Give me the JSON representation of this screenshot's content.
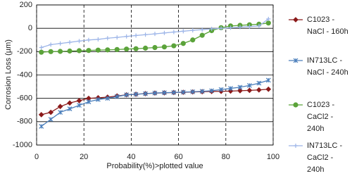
{
  "chart_data": {
    "type": "line",
    "x_label": "Probability(%)>plotted value",
    "y_label": "Corrosion Loss (µm)",
    "x": [
      2,
      6,
      10,
      14,
      18,
      22,
      26,
      30,
      34,
      38,
      42,
      46,
      50,
      54,
      58,
      62,
      66,
      70,
      74,
      78,
      82,
      86,
      90,
      94,
      98
    ],
    "series": [
      {
        "name": "C1023 - NaCl - 160h",
        "color": "#8b1a1a",
        "marker": "diamond",
        "values": [
          -740,
          -720,
          -670,
          -640,
          -620,
          -600,
          -595,
          -590,
          -580,
          -570,
          -565,
          -560,
          -555,
          -553,
          -550,
          -548,
          -545,
          -543,
          -541,
          -540,
          -538,
          -535,
          -532,
          -528,
          -522
        ]
      },
      {
        "name": "IN713LC - NaCl - 240h",
        "color": "#4a7ebb",
        "marker": "star",
        "values": [
          -840,
          -780,
          -720,
          -690,
          -660,
          -630,
          -610,
          -600,
          -585,
          -570,
          -565,
          -560,
          -555,
          -552,
          -550,
          -547,
          -544,
          -540,
          -535,
          -525,
          -515,
          -505,
          -490,
          -470,
          -445
        ]
      },
      {
        "name": "C1023 - CaCl2 - 240h",
        "color": "#5ba33a",
        "marker": "circle",
        "values": [
          -205,
          -200,
          -198,
          -195,
          -192,
          -190,
          -187,
          -185,
          -182,
          -178,
          -175,
          -170,
          -165,
          -160,
          -150,
          -130,
          -100,
          -60,
          -20,
          5,
          20,
          25,
          30,
          35,
          45
        ]
      },
      {
        "name": "IN713LC - CaCl2 - 240h",
        "color": "#9db5e8",
        "marker": "plus",
        "values": [
          -165,
          -140,
          -130,
          -120,
          -110,
          -100,
          -95,
          -85,
          -78,
          -70,
          -62,
          -55,
          -48,
          -40,
          -32,
          -25,
          -18,
          -12,
          -5,
          0,
          5,
          10,
          15,
          20,
          80
        ]
      }
    ],
    "xlim": [
      0,
      100
    ],
    "xticks": [
      0,
      20,
      40,
      60,
      80,
      100
    ],
    "ylim": [
      -1000,
      200
    ],
    "yticks": [
      -1000,
      -800,
      -600,
      -400,
      -200,
      0,
      200
    ],
    "grid": true,
    "legend": "right"
  }
}
